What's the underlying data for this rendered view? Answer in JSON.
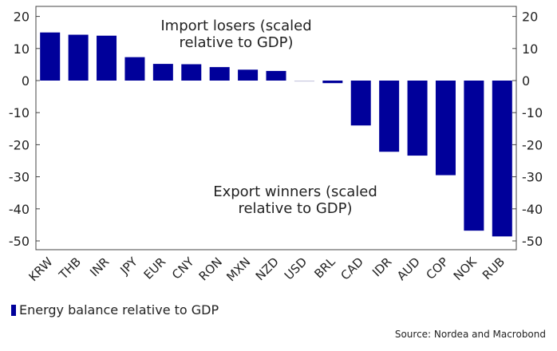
{
  "chart_data": {
    "type": "bar",
    "categories": [
      "KRW",
      "THB",
      "INR",
      "JPY",
      "EUR",
      "CNY",
      "RON",
      "MXN",
      "NZD",
      "USD",
      "BRL",
      "CAD",
      "IDR",
      "AUD",
      "COP",
      "NOK",
      "RUB"
    ],
    "series": [
      {
        "name": "Energy balance relative to GDP",
        "values": [
          15.0,
          14.3,
          14.0,
          7.3,
          5.2,
          5.1,
          4.2,
          3.4,
          3.0,
          -0.3,
          -0.8,
          -14.0,
          -22.2,
          -23.4,
          -29.5,
          -46.8,
          -48.6
        ]
      }
    ],
    "ylim": [
      -52,
      22
    ],
    "yticks": [
      20,
      10,
      0,
      -10,
      -20,
      -30,
      -40,
      -50
    ],
    "color": "#00009A",
    "grid": false,
    "annotations": [
      {
        "lines": [
          "Import losers (scaled",
          "relative to GDP)"
        ]
      },
      {
        "lines": [
          "Export winners (scaled",
          "relative to GDP)"
        ]
      }
    ],
    "legend": "bottom-left",
    "source": "Source: Nordea and Macrobond"
  }
}
